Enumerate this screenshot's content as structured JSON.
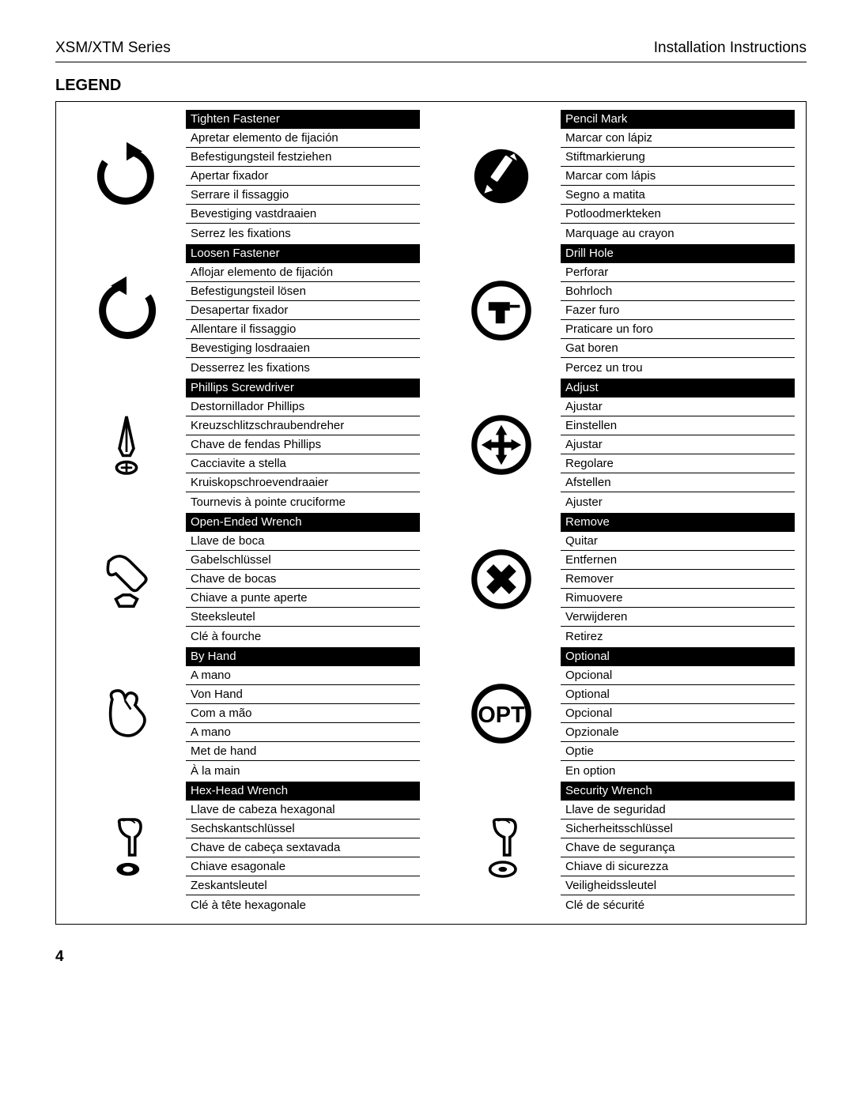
{
  "header": {
    "left": "XSM/XTM Series",
    "right": "Installation Instructions"
  },
  "section_title": "Legend",
  "page_number": "4",
  "colors": {
    "bg": "#ffffff",
    "fg": "#000000",
    "header_bg": "#000000",
    "header_fg": "#ffffff"
  },
  "columns": [
    [
      {
        "icon": "tighten",
        "labels": [
          "Tighten Fastener",
          "Apretar elemento de fijación",
          "Befestigungsteil festziehen",
          "Apertar fixador",
          "Serrare il fissaggio",
          "Bevestiging vastdraaien",
          "Serrez les fixations"
        ]
      },
      {
        "icon": "loosen",
        "labels": [
          "Loosen Fastener",
          "Aflojar elemento de fijación",
          "Befestigungsteil lösen",
          "Desapertar fixador",
          "Allentare il fissaggio",
          "Bevestiging losdraaien",
          "Desserrez les fixations"
        ]
      },
      {
        "icon": "phillips",
        "labels": [
          "Phillips Screwdriver",
          "Destornillador Phillips",
          "Kreuzschlitzschraubendreher",
          "Chave de fendas Phillips",
          "Cacciavite a stella",
          "Kruiskopschroevendraaier",
          "Tournevis à pointe cruciforme"
        ]
      },
      {
        "icon": "wrench",
        "labels": [
          "Open-Ended Wrench",
          "Llave de boca",
          "Gabelschlüssel",
          "Chave de bocas",
          "Chiave a punte aperte",
          "Steeksleutel",
          "Clé à fourche"
        ]
      },
      {
        "icon": "hand",
        "labels": [
          "By Hand",
          "A mano",
          "Von Hand",
          "Com a mão",
          "A mano",
          "Met de hand",
          "À la main"
        ]
      },
      {
        "icon": "hex",
        "labels": [
          "Hex-Head Wrench",
          "Llave de cabeza hexagonal",
          "Sechskantschlüssel",
          "Chave de cabeça sextavada",
          "Chiave esagonale",
          "Zeskantsleutel",
          "Clé à tête hexagonale"
        ]
      }
    ],
    [
      {
        "icon": "pencil",
        "labels": [
          "Pencil Mark",
          "Marcar con lápiz",
          "Stiftmarkierung",
          "Marcar com lápis",
          "Segno a matita",
          "Potloodmerkteken",
          "Marquage au crayon"
        ]
      },
      {
        "icon": "drill",
        "labels": [
          "Drill Hole",
          "Perforar",
          "Bohrloch",
          "Fazer furo",
          "Praticare un foro",
          "Gat boren",
          "Percez un trou"
        ]
      },
      {
        "icon": "adjust",
        "labels": [
          "Adjust",
          "Ajustar",
          "Einstellen",
          "Ajustar",
          "Regolare",
          "Afstellen",
          "Ajuster"
        ]
      },
      {
        "icon": "remove",
        "labels": [
          "Remove",
          "Quitar",
          "Entfernen",
          "Remover",
          "Rimuovere",
          "Verwijderen",
          "Retirez"
        ]
      },
      {
        "icon": "optional",
        "labels": [
          "Optional",
          "Opcional",
          "Optional",
          "Opcional",
          "Opzionale",
          "Optie",
          "En option"
        ]
      },
      {
        "icon": "security",
        "labels": [
          "Security Wrench",
          "Llave de seguridad",
          "Sicherheitsschlüssel",
          "Chave de segurança",
          "Chiave di sicurezza",
          "Veiligheidssleutel",
          "Clé de sécurité"
        ]
      }
    ]
  ]
}
